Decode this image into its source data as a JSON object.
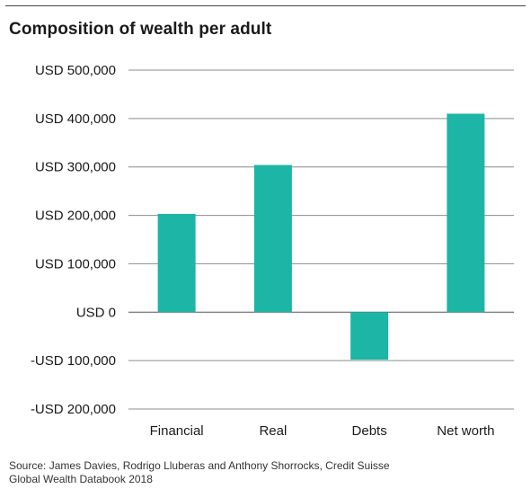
{
  "chart_data": {
    "type": "bar",
    "title": "Composition of wealth per adult",
    "categories": [
      "Financial",
      "Real",
      "Debts",
      "Net worth"
    ],
    "values": [
      203000,
      304000,
      -98000,
      410000
    ],
    "ylim": [
      -200000,
      500000
    ],
    "yticks": [
      500000,
      400000,
      300000,
      200000,
      100000,
      0,
      -100000,
      -200000
    ],
    "ytick_labels": [
      "USD 500,000",
      "USD 400,000",
      "USD 300,000",
      "USD 200,000",
      "USD 100,000",
      "USD 0",
      "-USD 100,000",
      "-USD 200,000"
    ],
    "xlabel": "",
    "ylabel": "",
    "grid": true,
    "bar_color": "#1cb5a6"
  },
  "source": {
    "line1": "Source: James Davies, Rodrigo Lluberas and Anthony Shorrocks, Credit Suisse",
    "line2": "Global Wealth Databook 2018"
  }
}
